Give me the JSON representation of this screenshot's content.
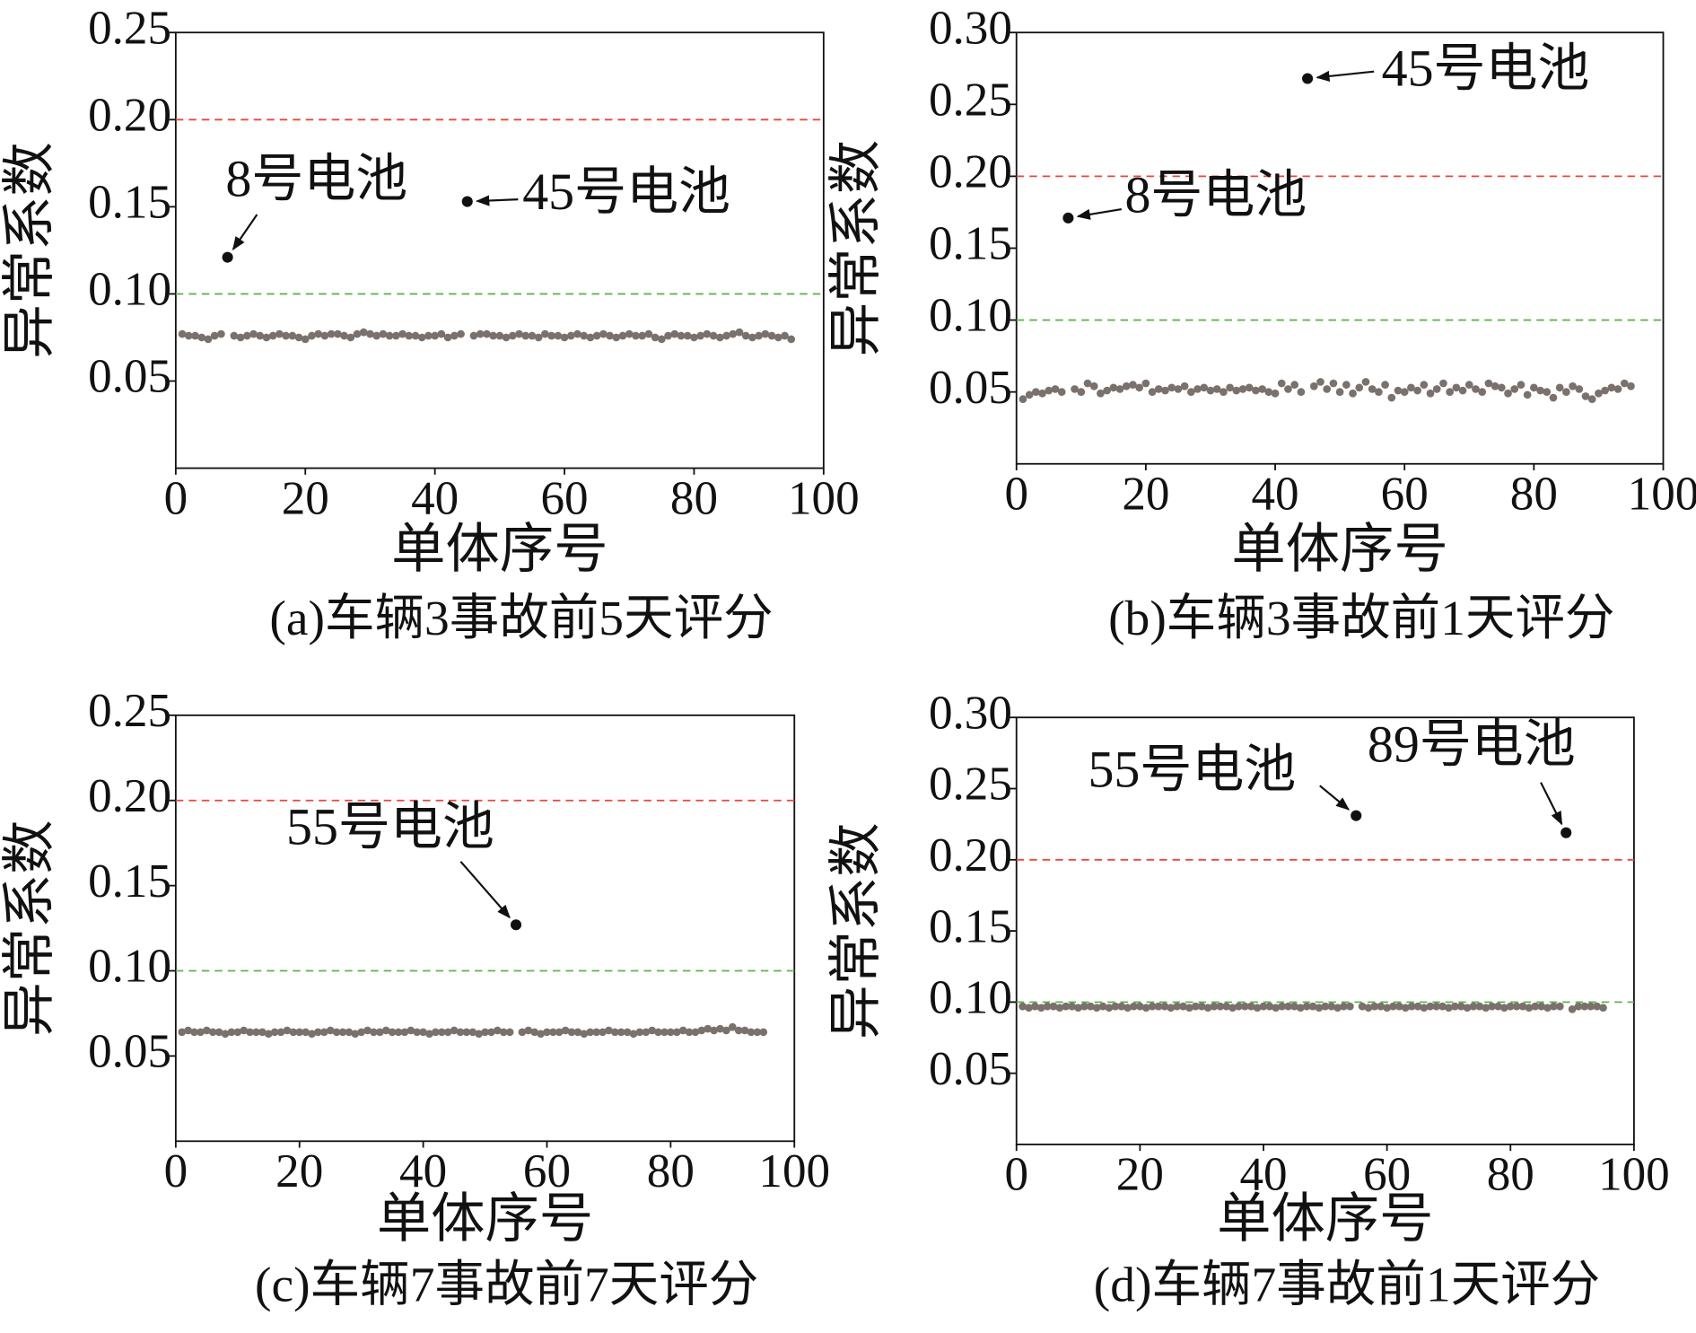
{
  "chart_data": [
    {
      "type": "scatter",
      "caption": "(a)车辆3事故前5天评分",
      "x_label": "单体序号",
      "y_label": "异常系数",
      "xlim": [
        0,
        100
      ],
      "xticks": [
        0,
        20,
        40,
        60,
        80,
        100
      ],
      "ylim": [
        0,
        0.25
      ],
      "yticks": [
        0.05,
        {
          "value": 0.1,
          "label": "0.10"
        },
        0.15,
        {
          "value": 0.2,
          "label": "0.20"
        },
        0.25
      ],
      "threshold_lines": [
        {
          "value": 0.2,
          "color": "#e8473a"
        },
        {
          "value": 0.1,
          "color": "#5fb548"
        }
      ],
      "series": [
        {
          "color": "#7a716d",
          "x": [
            1,
            2,
            3,
            4,
            5,
            6,
            7,
            9,
            10,
            11,
            12,
            13,
            14,
            15,
            16,
            17,
            18,
            19,
            20,
            21,
            22,
            23,
            24,
            25,
            26,
            27,
            28,
            29,
            30,
            31,
            32,
            33,
            34,
            35,
            36,
            37,
            38,
            39,
            40,
            41,
            42,
            43,
            44,
            46,
            47,
            48,
            49,
            50,
            51,
            52,
            53,
            54,
            55,
            56,
            57,
            58,
            59,
            60,
            61,
            62,
            63,
            64,
            65,
            66,
            67,
            68,
            69,
            70,
            71,
            72,
            73,
            74,
            75,
            76,
            77,
            78,
            79,
            80,
            81,
            82,
            83,
            84,
            85,
            86,
            87,
            88,
            89,
            90,
            91,
            92,
            93,
            94,
            95
          ],
          "values": [
            0.077,
            0.076,
            0.076,
            0.075,
            0.074,
            0.076,
            0.077,
            0.076,
            0.075,
            0.076,
            0.077,
            0.076,
            0.075,
            0.076,
            0.077,
            0.076,
            0.076,
            0.075,
            0.074,
            0.076,
            0.077,
            0.076,
            0.077,
            0.077,
            0.076,
            0.075,
            0.077,
            0.078,
            0.077,
            0.076,
            0.077,
            0.076,
            0.076,
            0.077,
            0.076,
            0.076,
            0.075,
            0.076,
            0.076,
            0.077,
            0.075,
            0.076,
            0.077,
            0.076,
            0.077,
            0.077,
            0.076,
            0.076,
            0.075,
            0.076,
            0.077,
            0.076,
            0.076,
            0.075,
            0.077,
            0.076,
            0.076,
            0.075,
            0.076,
            0.077,
            0.076,
            0.075,
            0.076,
            0.077,
            0.076,
            0.075,
            0.076,
            0.077,
            0.076,
            0.076,
            0.077,
            0.075,
            0.074,
            0.076,
            0.077,
            0.076,
            0.076,
            0.075,
            0.076,
            0.077,
            0.076,
            0.075,
            0.076,
            0.077,
            0.078,
            0.076,
            0.075,
            0.076,
            0.077,
            0.076,
            0.075,
            0.076,
            0.074
          ]
        }
      ],
      "annotations": [
        {
          "text": "8号电池",
          "x": 8,
          "y": 0.121
        },
        {
          "text": "45号电池",
          "x": 45,
          "y": 0.153
        }
      ]
    },
    {
      "type": "scatter",
      "caption": "(b)车辆3事故前1天评分",
      "x_label": "单体序号",
      "y_label": "异常系数",
      "xlim": [
        0,
        100
      ],
      "xticks": [
        0,
        20,
        40,
        60,
        80,
        100
      ],
      "ylim": [
        0,
        0.3
      ],
      "yticks": [
        0.05,
        {
          "value": 0.1,
          "label": "0.10"
        },
        0.15,
        {
          "value": 0.2,
          "label": "0.20"
        },
        0.25,
        {
          "value": 0.3,
          "label": "0.30"
        }
      ],
      "threshold_lines": [
        {
          "value": 0.2,
          "color": "#e8473a"
        },
        {
          "value": 0.1,
          "color": "#5fb548"
        }
      ],
      "series": [
        {
          "color": "#7a716d",
          "x": [
            1,
            2,
            3,
            4,
            5,
            6,
            7,
            9,
            10,
            11,
            12,
            13,
            14,
            15,
            16,
            17,
            18,
            19,
            20,
            21,
            22,
            23,
            24,
            25,
            26,
            27,
            28,
            29,
            30,
            31,
            32,
            33,
            34,
            35,
            36,
            37,
            38,
            39,
            40,
            41,
            42,
            43,
            44,
            46,
            47,
            48,
            49,
            50,
            51,
            52,
            53,
            54,
            55,
            56,
            57,
            58,
            59,
            60,
            61,
            62,
            63,
            64,
            65,
            66,
            67,
            68,
            69,
            70,
            71,
            72,
            73,
            74,
            75,
            76,
            77,
            78,
            79,
            80,
            81,
            82,
            83,
            84,
            85,
            86,
            87,
            88,
            89,
            90,
            91,
            92,
            93,
            94,
            95
          ],
          "values": [
            0.045,
            0.048,
            0.05,
            0.049,
            0.051,
            0.052,
            0.05,
            0.052,
            0.05,
            0.056,
            0.054,
            0.049,
            0.051,
            0.053,
            0.052,
            0.054,
            0.055,
            0.053,
            0.056,
            0.05,
            0.052,
            0.051,
            0.053,
            0.052,
            0.054,
            0.05,
            0.052,
            0.053,
            0.051,
            0.052,
            0.05,
            0.053,
            0.051,
            0.052,
            0.053,
            0.051,
            0.052,
            0.05,
            0.049,
            0.056,
            0.052,
            0.055,
            0.05,
            0.054,
            0.057,
            0.052,
            0.056,
            0.05,
            0.055,
            0.049,
            0.053,
            0.057,
            0.052,
            0.05,
            0.055,
            0.046,
            0.051,
            0.05,
            0.053,
            0.051,
            0.055,
            0.049,
            0.052,
            0.056,
            0.05,
            0.053,
            0.051,
            0.055,
            0.052,
            0.05,
            0.056,
            0.054,
            0.053,
            0.049,
            0.052,
            0.055,
            0.048,
            0.053,
            0.051,
            0.05,
            0.046,
            0.053,
            0.05,
            0.054,
            0.052,
            0.047,
            0.045,
            0.049,
            0.051,
            0.053,
            0.052,
            0.056,
            0.054
          ]
        }
      ],
      "annotations": [
        {
          "text": "45号电池",
          "x": 45,
          "y": 0.268
        },
        {
          "text": "8号电池",
          "x": 8,
          "y": 0.171
        }
      ]
    },
    {
      "type": "scatter",
      "caption": "(c)车辆7事故前7天评分",
      "x_label": "单体序号",
      "y_label": "异常系数",
      "xlim": [
        0,
        100
      ],
      "xticks": [
        0,
        20,
        40,
        60,
        80,
        100
      ],
      "ylim": [
        0,
        0.25
      ],
      "yticks": [
        0.05,
        {
          "value": 0.1,
          "label": "0.10"
        },
        0.15,
        {
          "value": 0.2,
          "label": "0.20"
        },
        0.25
      ],
      "threshold_lines": [
        {
          "value": 0.2,
          "color": "#e8473a"
        },
        {
          "value": 0.1,
          "color": "#5fb548"
        }
      ],
      "series": [
        {
          "color": "#7a716d",
          "x": [
            1,
            2,
            3,
            4,
            5,
            6,
            7,
            8,
            9,
            10,
            11,
            12,
            13,
            14,
            15,
            16,
            17,
            18,
            19,
            20,
            21,
            22,
            23,
            24,
            25,
            26,
            27,
            28,
            29,
            30,
            31,
            32,
            33,
            34,
            35,
            36,
            37,
            38,
            39,
            40,
            41,
            42,
            43,
            44,
            45,
            46,
            47,
            48,
            49,
            50,
            51,
            52,
            53,
            54,
            56,
            57,
            58,
            59,
            60,
            61,
            62,
            63,
            64,
            65,
            66,
            67,
            68,
            69,
            70,
            71,
            72,
            73,
            74,
            75,
            76,
            77,
            78,
            79,
            80,
            81,
            82,
            83,
            84,
            85,
            86,
            87,
            88,
            89,
            90,
            91,
            92,
            93,
            94,
            95
          ],
          "values": [
            0.064,
            0.065,
            0.064,
            0.064,
            0.065,
            0.064,
            0.064,
            0.063,
            0.064,
            0.064,
            0.065,
            0.064,
            0.064,
            0.064,
            0.063,
            0.064,
            0.064,
            0.065,
            0.064,
            0.064,
            0.064,
            0.063,
            0.064,
            0.064,
            0.065,
            0.064,
            0.064,
            0.064,
            0.063,
            0.064,
            0.065,
            0.064,
            0.064,
            0.065,
            0.064,
            0.064,
            0.064,
            0.065,
            0.064,
            0.064,
            0.063,
            0.064,
            0.064,
            0.064,
            0.065,
            0.064,
            0.064,
            0.064,
            0.063,
            0.064,
            0.064,
            0.065,
            0.064,
            0.064,
            0.064,
            0.065,
            0.064,
            0.063,
            0.064,
            0.064,
            0.064,
            0.065,
            0.064,
            0.064,
            0.063,
            0.064,
            0.064,
            0.064,
            0.065,
            0.064,
            0.064,
            0.064,
            0.063,
            0.064,
            0.064,
            0.065,
            0.064,
            0.064,
            0.064,
            0.064,
            0.065,
            0.064,
            0.064,
            0.065,
            0.066,
            0.065,
            0.066,
            0.065,
            0.067,
            0.065,
            0.065,
            0.064,
            0.064,
            0.064
          ]
        }
      ],
      "annotations": [
        {
          "text": "55号电池",
          "x": 55,
          "y": 0.127
        }
      ]
    },
    {
      "type": "scatter",
      "caption": "(d)车辆7事故前1天评分",
      "x_label": "单体序号",
      "y_label": "异常系数",
      "xlim": [
        0,
        100
      ],
      "xticks": [
        0,
        20,
        40,
        60,
        80,
        100
      ],
      "ylim": [
        0,
        0.3
      ],
      "yticks": [
        0.05,
        {
          "value": 0.1,
          "label": "0.10"
        },
        0.15,
        {
          "value": 0.2,
          "label": "0.20"
        },
        0.25,
        {
          "value": 0.3,
          "label": "0.30"
        }
      ],
      "threshold_lines": [
        {
          "value": 0.2,
          "color": "#e8473a"
        },
        {
          "value": 0.1,
          "color": "#5fb548"
        }
      ],
      "series": [
        {
          "color": "#7a716d",
          "x": [
            1,
            2,
            3,
            4,
            5,
            6,
            7,
            8,
            9,
            10,
            11,
            12,
            13,
            14,
            15,
            16,
            17,
            18,
            19,
            20,
            21,
            22,
            23,
            24,
            25,
            26,
            27,
            28,
            29,
            30,
            31,
            32,
            33,
            34,
            35,
            36,
            37,
            38,
            39,
            40,
            41,
            42,
            43,
            44,
            45,
            46,
            47,
            48,
            49,
            50,
            51,
            52,
            53,
            54,
            56,
            57,
            58,
            59,
            60,
            61,
            62,
            63,
            64,
            65,
            66,
            67,
            68,
            69,
            70,
            71,
            72,
            73,
            74,
            75,
            76,
            77,
            78,
            79,
            80,
            81,
            82,
            83,
            84,
            85,
            86,
            87,
            88,
            90,
            91,
            92,
            93,
            94,
            95
          ],
          "values": [
            0.097,
            0.096,
            0.097,
            0.096,
            0.097,
            0.097,
            0.096,
            0.097,
            0.097,
            0.096,
            0.097,
            0.097,
            0.096,
            0.097,
            0.096,
            0.097,
            0.097,
            0.096,
            0.097,
            0.097,
            0.096,
            0.097,
            0.097,
            0.097,
            0.096,
            0.097,
            0.097,
            0.096,
            0.097,
            0.097,
            0.096,
            0.097,
            0.097,
            0.097,
            0.096,
            0.097,
            0.097,
            0.097,
            0.096,
            0.097,
            0.097,
            0.096,
            0.097,
            0.097,
            0.097,
            0.096,
            0.097,
            0.097,
            0.096,
            0.097,
            0.097,
            0.096,
            0.097,
            0.097,
            0.097,
            0.096,
            0.097,
            0.097,
            0.096,
            0.097,
            0.097,
            0.096,
            0.097,
            0.097,
            0.096,
            0.097,
            0.097,
            0.097,
            0.096,
            0.097,
            0.097,
            0.096,
            0.097,
            0.097,
            0.096,
            0.097,
            0.097,
            0.096,
            0.097,
            0.097,
            0.097,
            0.096,
            0.097,
            0.097,
            0.096,
            0.097,
            0.097,
            0.095,
            0.097,
            0.097,
            0.097,
            0.097,
            0.096
          ]
        }
      ],
      "annotations": [
        {
          "text": "55号电池",
          "x": 55,
          "y": 0.231
        },
        {
          "text": "89号电池",
          "x": 89,
          "y": 0.219
        }
      ]
    }
  ]
}
